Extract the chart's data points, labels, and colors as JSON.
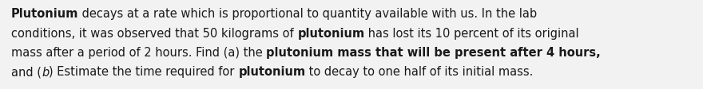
{
  "background_color": "#f2f2f2",
  "text_color": "#1a1a1a",
  "font_size": 10.5,
  "figwidth": 8.8,
  "figheight": 1.12,
  "dpi": 100,
  "lines": [
    [
      {
        "text": "Plutonium",
        "bold": true,
        "italic": false
      },
      {
        "text": " decays at a rate which is proportional to quantity available with us. In the lab",
        "bold": false,
        "italic": false
      }
    ],
    [
      {
        "text": "conditions, it was observed that 50 kilograms of ",
        "bold": false,
        "italic": false
      },
      {
        "text": "plutonium",
        "bold": true,
        "italic": false
      },
      {
        "text": " has lost its 10 percent of its original",
        "bold": false,
        "italic": false
      }
    ],
    [
      {
        "text": "mass after a period of 2 hours. Find (a) the ",
        "bold": false,
        "italic": false
      },
      {
        "text": "plutonium mass that will be present after 4 hours,",
        "bold": true,
        "italic": false
      }
    ],
    [
      {
        "text": "and (",
        "bold": false,
        "italic": false
      },
      {
        "text": "b",
        "bold": false,
        "italic": true
      },
      {
        "text": ") Estimate the time required for ",
        "bold": false,
        "italic": false
      },
      {
        "text": "plutonium",
        "bold": true,
        "italic": false
      },
      {
        "text": " to decay to one half of its initial mass.",
        "bold": false,
        "italic": false
      }
    ]
  ]
}
